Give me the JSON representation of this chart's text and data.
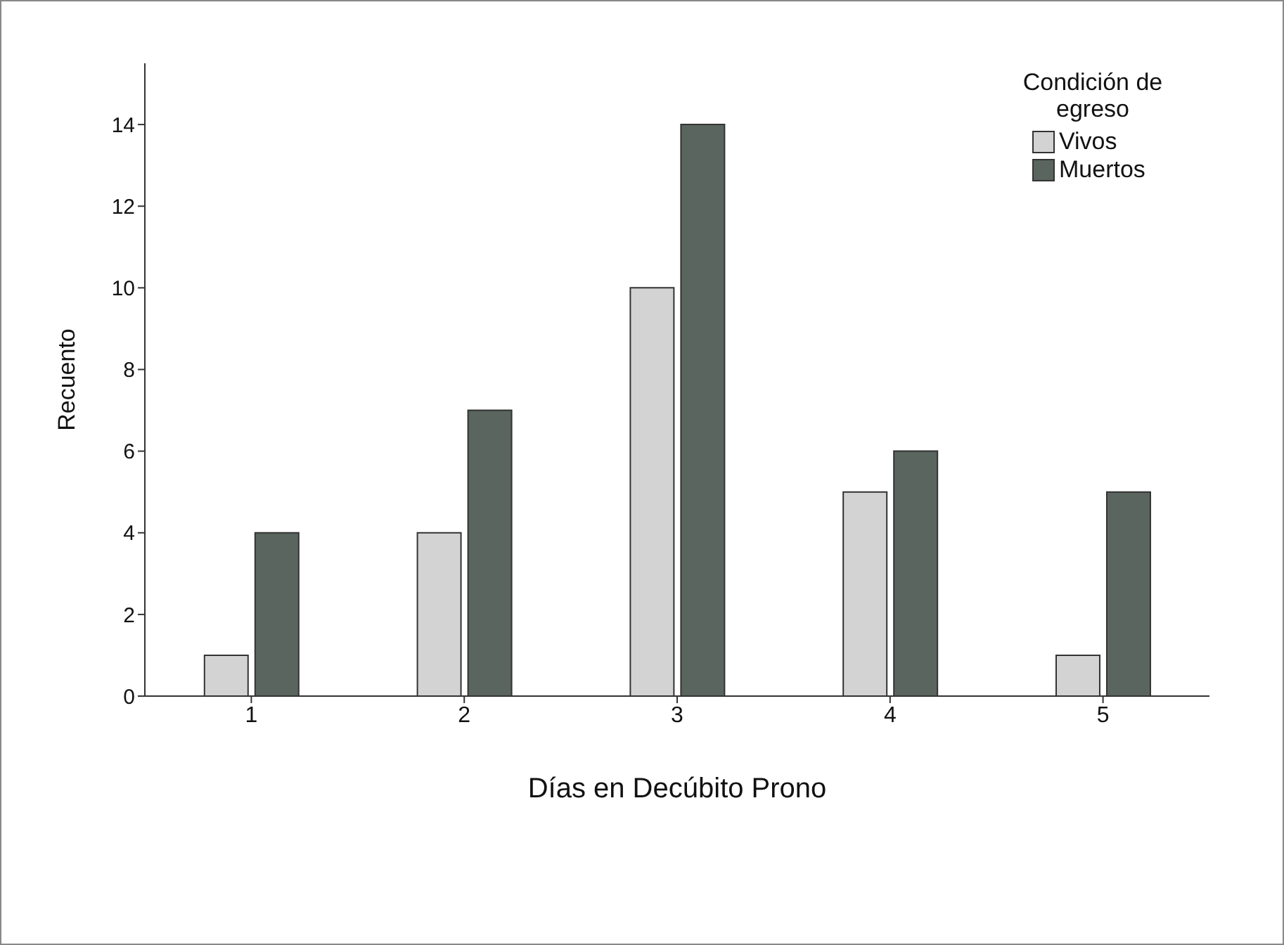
{
  "chart_data": {
    "type": "bar",
    "xlabel": "Días en Decúbito Prono",
    "ylabel": "Recuento",
    "legend_title": "Condición de egreso",
    "legend": "top right",
    "categories": [
      "1",
      "2",
      "3",
      "4",
      "5"
    ],
    "series": [
      {
        "name": "Vivos",
        "color": "#d3d3d3",
        "values": [
          1,
          4,
          10,
          5,
          1
        ]
      },
      {
        "name": "Muertos",
        "color": "#5a655f",
        "values": [
          4,
          7,
          14,
          6,
          5
        ]
      }
    ],
    "ylim": [
      0,
      15.5
    ],
    "yticks": [
      0,
      2,
      4,
      6,
      8,
      10,
      12,
      14
    ]
  }
}
